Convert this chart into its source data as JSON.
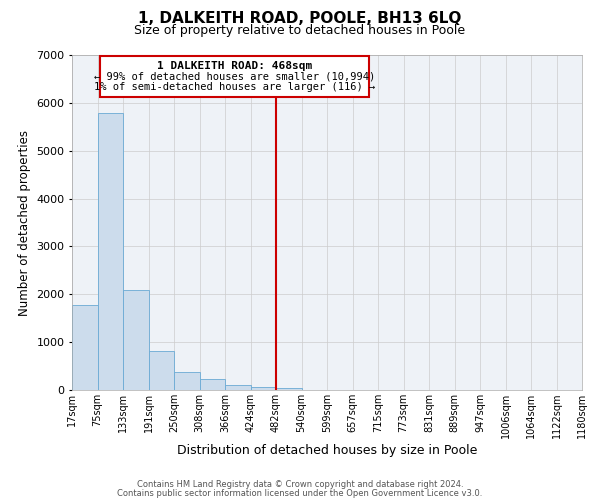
{
  "title": "1, DALKEITH ROAD, POOLE, BH13 6LQ",
  "subtitle": "Size of property relative to detached houses in Poole",
  "xlabel": "Distribution of detached houses by size in Poole",
  "ylabel": "Number of detached properties",
  "bar_color": "#ccdcec",
  "bar_edge_color": "#6aaad4",
  "bin_labels": [
    "17sqm",
    "75sqm",
    "133sqm",
    "191sqm",
    "250sqm",
    "308sqm",
    "366sqm",
    "424sqm",
    "482sqm",
    "540sqm",
    "599sqm",
    "657sqm",
    "715sqm",
    "773sqm",
    "831sqm",
    "889sqm",
    "947sqm",
    "1006sqm",
    "1064sqm",
    "1122sqm",
    "1180sqm"
  ],
  "bar_heights": [
    1780,
    5780,
    2080,
    820,
    370,
    230,
    100,
    60,
    50,
    0,
    0,
    0,
    0,
    0,
    0,
    0,
    0,
    0,
    0,
    0
  ],
  "vline_x": 8.0,
  "vline_color": "#cc0000",
  "annotation_title": "1 DALKEITH ROAD: 468sqm",
  "annotation_line1": "← 99% of detached houses are smaller (10,994)",
  "annotation_line2": "1% of semi-detached houses are larger (116) →",
  "footnote1": "Contains HM Land Registry data © Crown copyright and database right 2024.",
  "footnote2": "Contains public sector information licensed under the Open Government Licence v3.0.",
  "ylim": [
    0,
    7000
  ],
  "yticks": [
    0,
    1000,
    2000,
    3000,
    4000,
    5000,
    6000,
    7000
  ],
  "background_color": "#ffffff",
  "plot_bg_color": "#eef2f7",
  "grid_color": "#cccccc"
}
